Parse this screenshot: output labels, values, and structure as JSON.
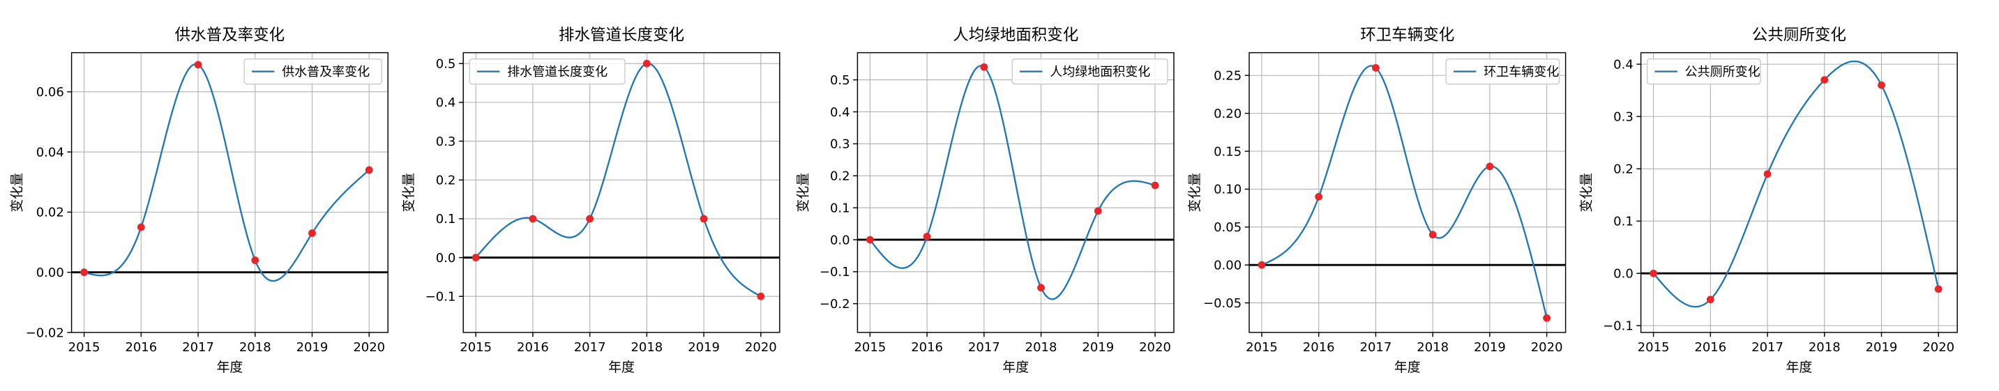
{
  "figure": {
    "xlabel": "年度",
    "ylabel": "变化量"
  },
  "colors": {
    "line": "#1f77b4",
    "point": "#e8262a",
    "zero_line": "#000000",
    "grid": "#b0b0b0",
    "axes": "#000000"
  },
  "chart_data": [
    {
      "type": "line",
      "title": "供水普及率变化",
      "xlabel": "年度",
      "ylabel": "变化量",
      "x": [
        2015,
        2016,
        2017,
        2018,
        2019,
        2020
      ],
      "series": [
        {
          "name": "供水普及率变化",
          "values": [
            0.0,
            0.015,
            0.069,
            0.004,
            0.013,
            0.034
          ]
        }
      ],
      "xlim": [
        2014.78,
        2020.33
      ],
      "ylim": [
        -0.02,
        0.073
      ],
      "yticks": [
        -0.02,
        0.0,
        0.02,
        0.04,
        0.06
      ],
      "ytick_labels": [
        "−0.02",
        "0.00",
        "0.02",
        "0.04",
        "0.06"
      ],
      "xticks": [
        2015,
        2016,
        2017,
        2018,
        2019,
        2020
      ],
      "legend": "top-right",
      "grid": true
    },
    {
      "type": "line",
      "title": "排水管道长度变化",
      "xlabel": "年度",
      "ylabel": "变化量",
      "x": [
        2015,
        2016,
        2017,
        2018,
        2019,
        2020
      ],
      "series": [
        {
          "name": "排水管道长度变化",
          "values": [
            0.0,
            0.1,
            0.1,
            0.5,
            0.1,
            -0.1
          ]
        }
      ],
      "xlim": [
        2014.78,
        2020.33
      ],
      "ylim": [
        -0.193,
        0.528
      ],
      "yticks": [
        -0.1,
        0.0,
        0.1,
        0.2,
        0.3,
        0.4,
        0.5
      ],
      "ytick_labels": [
        "−0.1",
        "0.0",
        "0.1",
        "0.2",
        "0.3",
        "0.4",
        "0.5"
      ],
      "xticks": [
        2015,
        2016,
        2017,
        2018,
        2019,
        2020
      ],
      "legend": "top-left",
      "grid": true
    },
    {
      "type": "line",
      "title": "人均绿地面积变化",
      "xlabel": "年度",
      "ylabel": "变化量",
      "x": [
        2015,
        2016,
        2017,
        2018,
        2019,
        2020
      ],
      "series": [
        {
          "name": "人均绿地面积变化",
          "values": [
            0.0,
            0.01,
            0.54,
            -0.15,
            0.09,
            0.17
          ]
        }
      ],
      "xlim": [
        2014.78,
        2020.33
      ],
      "ylim": [
        -0.29,
        0.585
      ],
      "yticks": [
        -0.2,
        -0.1,
        0.0,
        0.1,
        0.2,
        0.3,
        0.4,
        0.5
      ],
      "ytick_labels": [
        "−0.2",
        "−0.1",
        "0.0",
        "0.1",
        "0.2",
        "0.3",
        "0.4",
        "0.5"
      ],
      "xticks": [
        2015,
        2016,
        2017,
        2018,
        2019,
        2020
      ],
      "legend": "top-right",
      "grid": true
    },
    {
      "type": "line",
      "title": "环卫车辆变化",
      "xlabel": "年度",
      "ylabel": "变化量",
      "x": [
        2015,
        2016,
        2017,
        2018,
        2019,
        2020
      ],
      "series": [
        {
          "name": "环卫车辆变化",
          "values": [
            0.0,
            0.09,
            0.26,
            0.04,
            0.13,
            -0.07
          ]
        }
      ],
      "xlim": [
        2014.78,
        2020.33
      ],
      "ylim": [
        -0.089,
        0.28
      ],
      "yticks": [
        -0.05,
        0.0,
        0.05,
        0.1,
        0.15,
        0.2,
        0.25
      ],
      "ytick_labels": [
        "−0.05",
        "0.00",
        "0.05",
        "0.10",
        "0.15",
        "0.20",
        "0.25"
      ],
      "xticks": [
        2015,
        2016,
        2017,
        2018,
        2019,
        2020
      ],
      "legend": "top-right",
      "grid": true
    },
    {
      "type": "line",
      "title": "公共厕所变化",
      "xlabel": "年度",
      "ylabel": "变化量",
      "x": [
        2015,
        2016,
        2017,
        2018,
        2019,
        2020
      ],
      "series": [
        {
          "name": "公共厕所变化",
          "values": [
            0.0,
            -0.05,
            0.19,
            0.37,
            0.36,
            -0.03
          ]
        }
      ],
      "xlim": [
        2014.78,
        2020.33
      ],
      "ylim": [
        -0.113,
        0.422
      ],
      "yticks": [
        -0.1,
        0.0,
        0.1,
        0.2,
        0.3,
        0.4
      ],
      "ytick_labels": [
        "−0.1",
        "0.0",
        "0.1",
        "0.2",
        "0.3",
        "0.4"
      ],
      "xticks": [
        2015,
        2016,
        2017,
        2018,
        2019,
        2020
      ],
      "legend": "top-left",
      "grid": true
    }
  ]
}
